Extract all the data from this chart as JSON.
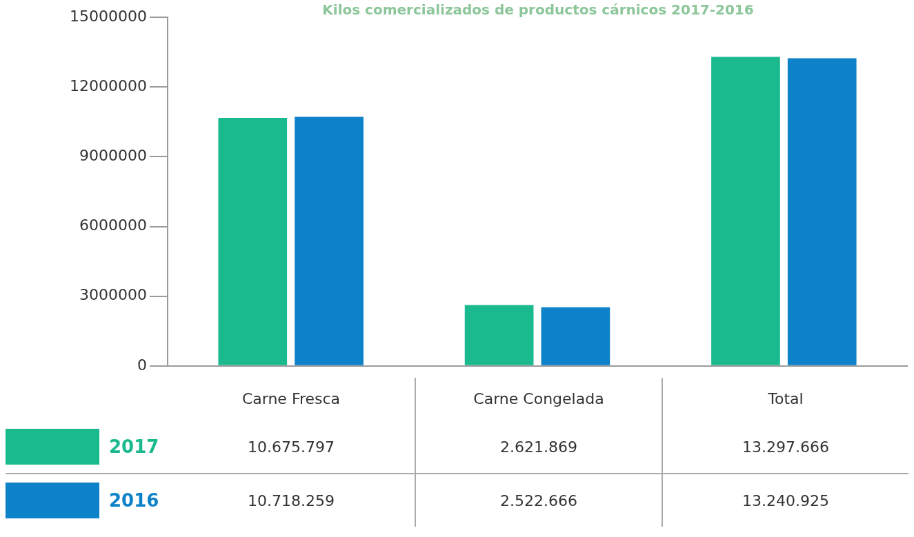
{
  "chart_data": {
    "type": "bar",
    "title": "Kilos comercializados de productos cárnicos 2017-2016",
    "categories": [
      "Carne Fresca",
      "Carne Congelada",
      "Total"
    ],
    "series": [
      {
        "name": "2017",
        "color": "#1bb98e",
        "values": [
          10675797,
          2621869,
          13297666
        ],
        "value_labels": [
          "10.675.797",
          "2.621.869",
          "13.297.666"
        ]
      },
      {
        "name": "2016",
        "color": "#0e82c8",
        "values": [
          10718259,
          2522666,
          13240925
        ],
        "value_labels": [
          "10.718.259",
          "2.522.666",
          "13.240.925"
        ]
      }
    ],
    "ylim": [
      0,
      15000000
    ],
    "yticks": [
      0,
      3000000,
      6000000,
      9000000,
      12000000,
      15000000
    ],
    "grid": false,
    "legend": "bottom"
  }
}
